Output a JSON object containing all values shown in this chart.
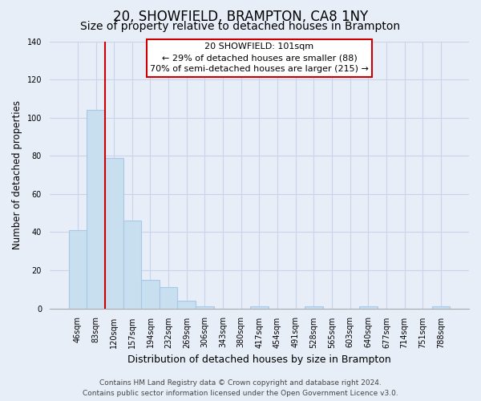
{
  "title": "20, SHOWFIELD, BRAMPTON, CA8 1NY",
  "subtitle": "Size of property relative to detached houses in Brampton",
  "xlabel": "Distribution of detached houses by size in Brampton",
  "ylabel": "Number of detached properties",
  "bar_labels": [
    "46sqm",
    "83sqm",
    "120sqm",
    "157sqm",
    "194sqm",
    "232sqm",
    "269sqm",
    "306sqm",
    "343sqm",
    "380sqm",
    "417sqm",
    "454sqm",
    "491sqm",
    "528sqm",
    "565sqm",
    "603sqm",
    "640sqm",
    "677sqm",
    "714sqm",
    "751sqm",
    "788sqm"
  ],
  "bar_values": [
    41,
    104,
    79,
    46,
    15,
    11,
    4,
    1,
    0,
    0,
    1,
    0,
    0,
    1,
    0,
    0,
    1,
    0,
    0,
    0,
    1
  ],
  "bar_color": "#c8dff0",
  "bar_edge_color": "#a8c8e8",
  "vline_color": "#cc0000",
  "vline_x": 1.5,
  "ylim": [
    0,
    140
  ],
  "yticks": [
    0,
    20,
    40,
    60,
    80,
    100,
    120,
    140
  ],
  "annotation_title": "20 SHOWFIELD: 101sqm",
  "annotation_line1": "← 29% of detached houses are smaller (88)",
  "annotation_line2": "70% of semi-detached houses are larger (215) →",
  "annotation_box_color": "#ffffff",
  "annotation_box_edge": "#cc0000",
  "footer_line1": "Contains HM Land Registry data © Crown copyright and database right 2024.",
  "footer_line2": "Contains public sector information licensed under the Open Government Licence v3.0.",
  "background_color": "#e8eef8",
  "grid_color": "#c8d4e8",
  "title_fontsize": 12,
  "subtitle_fontsize": 10,
  "xlabel_fontsize": 9,
  "ylabel_fontsize": 8.5,
  "tick_fontsize": 7,
  "footer_fontsize": 6.5
}
